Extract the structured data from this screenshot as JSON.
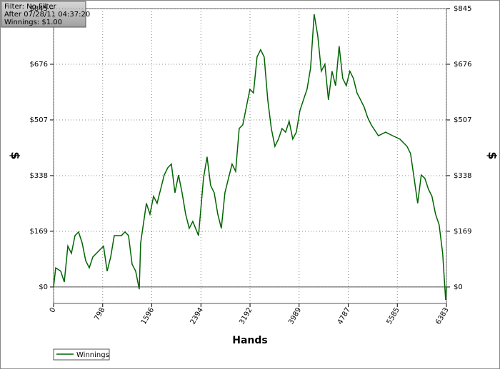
{
  "chart_data": {
    "type": "line",
    "info": [
      "Filter: No Filter",
      "After 07/28/11 04:37:20",
      "Winnings: $1.00"
    ],
    "xlabel": "Hands",
    "ylabel": "$",
    "xlim": [
      0,
      6383
    ],
    "xticks": [
      0,
      798,
      1596,
      2394,
      3192,
      3989,
      4787,
      5585,
      6383
    ],
    "ylim": [
      -50,
      845
    ],
    "yticks": [
      {
        "value": 0,
        "label": "$0"
      },
      {
        "value": 169,
        "label": "$169"
      },
      {
        "value": 338,
        "label": "$338"
      },
      {
        "value": 507,
        "label": "$507"
      },
      {
        "value": 676,
        "label": "$676"
      },
      {
        "value": 845,
        "label": "$845"
      }
    ],
    "grid": true,
    "x": [
      0,
      35,
      116,
      174,
      232,
      290,
      348,
      406,
      464,
      522,
      580,
      638,
      754,
      812,
      870,
      928,
      986,
      1102,
      1160,
      1218,
      1276,
      1334,
      1392,
      1415,
      1508,
      1566,
      1624,
      1682,
      1740,
      1798,
      1856,
      1914,
      1972,
      2030,
      2088,
      2146,
      2204,
      2262,
      2355,
      2436,
      2494,
      2552,
      2610,
      2668,
      2726,
      2784,
      2842,
      2900,
      2958,
      3016,
      3074,
      3132,
      3190,
      3248,
      3306,
      3364,
      3422,
      3480,
      3538,
      3596,
      3654,
      3712,
      3770,
      3828,
      3886,
      3944,
      4002,
      4060,
      4118,
      4176,
      4234,
      4292,
      4350,
      4408,
      4466,
      4524,
      4582,
      4640,
      4698,
      4756,
      4814,
      4872,
      4930,
      4988,
      5046,
      5104,
      5162,
      5278,
      5394,
      5510,
      5626,
      5742,
      5800,
      5858,
      5916,
      5974,
      6032,
      6090,
      6148,
      6206,
      6264,
      6322,
      6370,
      6383
    ],
    "series": [
      {
        "name": "Winnings",
        "color": "#006400",
        "values": [
          0,
          58,
          48,
          15,
          124,
          102,
          156,
          167,
          134,
          80,
          58,
          91,
          113,
          124,
          48,
          91,
          156,
          156,
          167,
          156,
          69,
          48,
          -7,
          134,
          254,
          221,
          275,
          254,
          297,
          340,
          362,
          373,
          286,
          340,
          286,
          221,
          178,
          199,
          156,
          330,
          395,
          308,
          286,
          221,
          178,
          286,
          330,
          373,
          351,
          481,
          492,
          546,
          600,
          589,
          698,
          720,
          698,
          568,
          481,
          427,
          449,
          481,
          470,
          503,
          449,
          470,
          535,
          568,
          600,
          665,
          828,
          763,
          655,
          676,
          568,
          655,
          611,
          731,
          633,
          611,
          655,
          633,
          589,
          568,
          546,
          514,
          492,
          459,
          470,
          459,
          449,
          427,
          405,
          330,
          254,
          340,
          330,
          297,
          275,
          221,
          189,
          102,
          -39,
          1
        ]
      }
    ]
  }
}
